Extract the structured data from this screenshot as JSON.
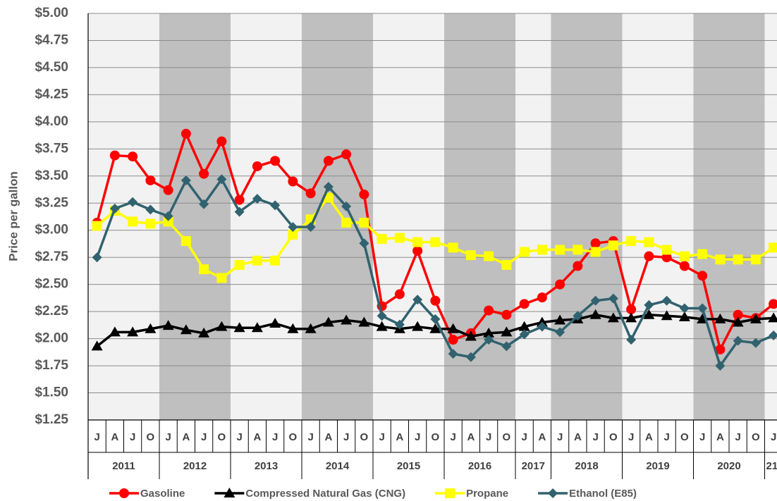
{
  "chart_data": {
    "type": "line",
    "y_label": "Price per gallon",
    "categories": [
      "J",
      "A",
      "J",
      "O",
      "J",
      "A",
      "J",
      "O",
      "J",
      "A",
      "J",
      "O",
      "J",
      "A",
      "J",
      "O",
      "J",
      "A",
      "J",
      "O",
      "J",
      "A",
      "J",
      "O",
      "J",
      "A",
      "J",
      "A",
      "J",
      "O",
      "J",
      "A",
      "J",
      "O",
      "J",
      "A",
      "J",
      "O",
      "J"
    ],
    "category_groups": [
      "2011",
      null,
      null,
      null,
      "2012",
      null,
      null,
      null,
      "2013",
      null,
      null,
      null,
      "2014",
      null,
      null,
      null,
      "2015",
      null,
      null,
      null,
      "2016",
      null,
      null,
      null,
      "2017",
      null,
      "2018",
      null,
      null,
      null,
      "2019",
      null,
      null,
      null,
      "2020",
      null,
      null,
      null,
      "21"
    ],
    "band_colors": [
      "#f2f2f2",
      "#bfbfbf"
    ],
    "ylim": [
      1.25,
      5.0
    ],
    "yticks": [
      {
        "value": 1.25,
        "label": "$1.25"
      },
      {
        "value": 1.5,
        "label": "$1.50"
      },
      {
        "value": 1.75,
        "label": "$1.75"
      },
      {
        "value": 2.0,
        "label": "$2.00"
      },
      {
        "value": 2.25,
        "label": "$2.25"
      },
      {
        "value": 2.5,
        "label": "$2.50"
      },
      {
        "value": 2.75,
        "label": "$2.75"
      },
      {
        "value": 3.0,
        "label": "$3.00"
      },
      {
        "value": 3.25,
        "label": "$3.25"
      },
      {
        "value": 3.5,
        "label": "$3.50"
      },
      {
        "value": 3.75,
        "label": "$3.75"
      },
      {
        "value": 4.0,
        "label": "$4.00"
      },
      {
        "value": 4.25,
        "label": "$4.25"
      },
      {
        "value": 4.5,
        "label": "$4.50"
      },
      {
        "value": 4.75,
        "label": "$4.75"
      },
      {
        "value": 5.0,
        "label": "$5.00"
      }
    ],
    "grid": true,
    "legend": "bottom",
    "series": [
      {
        "name": "Gasoline",
        "color": "#ff0000",
        "marker": "circle",
        "values": [
          3.07,
          3.69,
          3.68,
          3.46,
          3.37,
          3.89,
          3.52,
          3.82,
          3.28,
          3.59,
          3.64,
          3.45,
          3.34,
          3.64,
          3.7,
          3.33,
          2.3,
          2.41,
          2.81,
          2.35,
          1.99,
          2.05,
          2.26,
          2.22,
          2.32,
          2.38,
          2.5,
          2.67,
          2.88,
          2.9,
          2.27,
          2.76,
          2.75,
          2.67,
          2.58,
          1.9,
          2.22,
          2.19,
          2.32
        ]
      },
      {
        "name": "Compressed Natural Gas (CNG)",
        "color": "#000000",
        "marker": "triangle",
        "values": [
          1.93,
          2.06,
          2.06,
          2.09,
          2.12,
          2.08,
          2.05,
          2.11,
          2.1,
          2.1,
          2.14,
          2.09,
          2.09,
          2.15,
          2.17,
          2.15,
          2.11,
          2.09,
          2.11,
          2.09,
          2.09,
          2.02,
          2.05,
          2.06,
          2.11,
          2.15,
          2.17,
          2.18,
          2.22,
          2.19,
          2.19,
          2.22,
          2.21,
          2.2,
          2.18,
          2.18,
          2.15,
          2.18,
          2.19
        ]
      },
      {
        "name": "Propane",
        "color": "#ffff00",
        "marker": "square",
        "values": [
          3.04,
          3.18,
          3.08,
          3.06,
          3.08,
          2.9,
          2.64,
          2.56,
          2.68,
          2.72,
          2.72,
          2.96,
          3.1,
          3.3,
          3.07,
          3.07,
          2.92,
          2.93,
          2.89,
          2.89,
          2.84,
          2.77,
          2.76,
          2.68,
          2.8,
          2.82,
          2.82,
          2.82,
          2.8,
          2.86,
          2.9,
          2.89,
          2.82,
          2.76,
          2.78,
          2.73,
          2.73,
          2.73,
          2.84
        ]
      },
      {
        "name": "Ethanol (E85)",
        "color": "#31626f",
        "marker": "diamond",
        "values": [
          2.75,
          3.2,
          3.26,
          3.19,
          3.13,
          3.46,
          3.24,
          3.47,
          3.17,
          3.29,
          3.23,
          3.03,
          3.03,
          3.4,
          3.22,
          2.88,
          2.21,
          2.13,
          2.36,
          2.18,
          1.86,
          1.83,
          1.99,
          1.93,
          2.04,
          2.11,
          2.06,
          2.21,
          2.35,
          2.37,
          1.99,
          2.31,
          2.35,
          2.28,
          2.28,
          1.75,
          1.98,
          1.96,
          2.03
        ]
      }
    ]
  }
}
